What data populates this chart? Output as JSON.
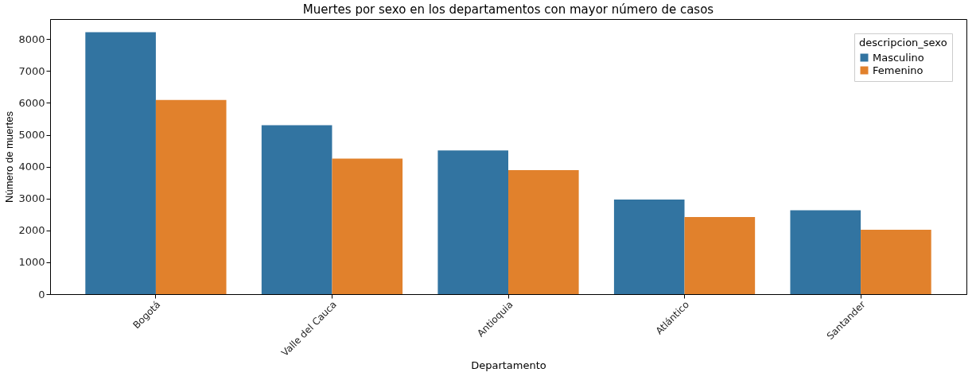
{
  "chart_data": {
    "type": "bar",
    "title": "Muertes por sexo en los departamentos con mayor número de casos",
    "xlabel": "Departamento",
    "ylabel": "Número de muertes",
    "legend_title": "descripcion_sexo",
    "categories": [
      "Bogotá",
      "Valle del Cauca",
      "Antioquia",
      "Atlántico",
      "Santander"
    ],
    "series": [
      {
        "name": "Masculino",
        "color": "#3274a1",
        "values": [
          8220,
          5300,
          4510,
          2970,
          2630
        ]
      },
      {
        "name": "Femenino",
        "color": "#e1812c",
        "values": [
          6090,
          4250,
          3890,
          2420,
          2020
        ]
      }
    ],
    "ylim": [
      0,
      8630
    ],
    "yticks": [
      0,
      1000,
      2000,
      3000,
      4000,
      5000,
      6000,
      7000,
      8000
    ],
    "grid": false,
    "legend": "top right"
  }
}
